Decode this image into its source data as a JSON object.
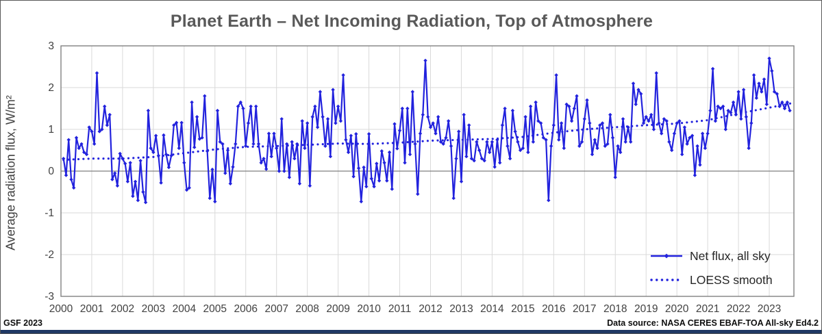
{
  "header": {
    "title": "Planet Earth – Net Incoming Radiation, Top of Atmosphere"
  },
  "footer": {
    "credit": "GSF 2023",
    "data_source": "Data source: NASA CERES EBAF-TOA All-sky Ed4.2"
  },
  "legend": {
    "net_flux_label": "Net flux, all sky",
    "loess_label": "LOESS smooth"
  },
  "colors": {
    "series_blue": "#2222DD",
    "title_gray": "#595959",
    "axis_text": "#404040",
    "gridline": "#D9D9D9",
    "axis_line": "#808080",
    "zero_line": "#7f7f7f",
    "footer_bar_navy": "#1F3864",
    "footer_text": "#0d0d0d"
  },
  "chart_data": {
    "type": "line",
    "title": "Planet Earth – Net Incoming Radiation, Top of Atmosphere",
    "xlabel": "",
    "ylabel": "Average radiation flux, W/m²",
    "ylim": [
      -3,
      3
    ],
    "xlim": [
      2000,
      23.8
    ],
    "y_ticks": [
      3,
      2,
      1,
      0,
      -1,
      -2,
      -3
    ],
    "x_ticks": [
      2000,
      2001,
      2002,
      2003,
      2004,
      2005,
      2006,
      2007,
      2008,
      2009,
      2010,
      2011,
      2012,
      2013,
      2014,
      2015,
      2016,
      2017,
      2018,
      2019,
      2020,
      2021,
      2022,
      2023
    ],
    "grid": true,
    "legend_position": "lower right",
    "series": [
      {
        "name": "Net flux, all sky",
        "style": "solid-line-with-diamond-markers",
        "frequency": "monthly",
        "start": "2000-02",
        "units": "W/m2",
        "values": [
          0.3,
          -0.1,
          0.75,
          -0.2,
          -0.4,
          0.8,
          0.55,
          0.65,
          0.45,
          0.4,
          1.05,
          0.95,
          0.65,
          2.35,
          0.95,
          1.0,
          1.55,
          1.1,
          1.35,
          -0.2,
          -0.05,
          -0.35,
          0.42,
          0.3,
          0.18,
          -0.25,
          0.2,
          -0.6,
          -0.25,
          -0.7,
          0.25,
          -0.5,
          -0.75,
          1.45,
          0.55,
          0.45,
          0.85,
          0.37,
          -0.28,
          0.86,
          0.4,
          0.09,
          0.37,
          1.1,
          1.16,
          0.55,
          1.16,
          0.2,
          -0.45,
          -0.4,
          1.65,
          0.57,
          1.3,
          0.77,
          0.8,
          1.8,
          0.48,
          -0.65,
          0.04,
          -0.73,
          1.45,
          0.7,
          0.65,
          -0.05,
          0.5,
          -0.3,
          0.1,
          0.65,
          1.55,
          1.65,
          1.5,
          0.6,
          1.15,
          1.55,
          0.65,
          1.55,
          0.65,
          0.2,
          0.3,
          0.05,
          0.9,
          0.35,
          0.9,
          0.55,
          0.0,
          1.25,
          0.0,
          0.65,
          -0.15,
          0.7,
          0.3,
          0.65,
          -0.3,
          1.2,
          0.55,
          1.15,
          -0.35,
          1.3,
          1.55,
          1.05,
          1.9,
          1.3,
          0.6,
          1.25,
          0.35,
          1.95,
          1.15,
          1.55,
          1.2,
          2.3,
          0.75,
          0.45,
          0.85,
          -0.13,
          0.89,
          0.07,
          -0.73,
          0.09,
          -0.37,
          0.89,
          -0.18,
          -0.37,
          0.18,
          -0.23,
          0.48,
          0.2,
          -0.23,
          0.45,
          -0.43,
          1.13,
          0.54,
          0.97,
          1.5,
          0.2,
          1.5,
          0.4,
          1.9,
          0.65,
          -0.55,
          0.9,
          1.35,
          2.65,
          1.3,
          1.05,
          1.15,
          0.9,
          1.3,
          0.7,
          0.65,
          0.8,
          1.2,
          0.6,
          -0.65,
          0.3,
          0.95,
          -0.25,
          1.35,
          0.35,
          1.1,
          0.3,
          0.25,
          0.7,
          0.5,
          0.3,
          0.25,
          0.7,
          0.45,
          0.7,
          0.1,
          0.75,
          0.2,
          1.1,
          1.5,
          0.6,
          0.3,
          1.45,
          0.95,
          0.7,
          0.5,
          0.55,
          1.3,
          0.45,
          1.55,
          0.7,
          1.65,
          1.2,
          1.15,
          0.8,
          0.75,
          -0.7,
          0.6,
          1.1,
          2.3,
          0.75,
          1.15,
          0.55,
          1.6,
          1.55,
          1.2,
          1.5,
          1.8,
          0.6,
          0.7,
          1.25,
          1.7,
          1.15,
          0.4,
          0.75,
          0.55,
          1.1,
          1.15,
          0.6,
          0.65,
          1.35,
          0.8,
          -0.15,
          0.6,
          0.45,
          1.25,
          0.7,
          1.05,
          0.7,
          2.1,
          1.6,
          1.95,
          1.85,
          1.15,
          1.3,
          1.2,
          1.35,
          1.0,
          2.35,
          1.15,
          0.9,
          1.25,
          1.2,
          0.7,
          0.5,
          0.9,
          1.15,
          1.2,
          0.4,
          1.05,
          0.65,
          0.8,
          0.85,
          -0.1,
          0.6,
          0.15,
          0.9,
          0.55,
          0.9,
          1.45,
          2.45,
          1.2,
          1.55,
          1.5,
          1.55,
          1.0,
          1.45,
          1.4,
          1.65,
          1.35,
          1.9,
          1.25,
          1.95,
          1.3,
          0.55,
          1.15,
          2.3,
          1.75,
          2.1,
          1.9,
          2.2,
          1.6,
          2.7,
          2.4,
          1.9,
          1.85,
          1.55,
          1.65,
          1.5,
          1.65,
          1.45
        ]
      },
      {
        "name": "LOESS smooth",
        "style": "dotted-line",
        "points": [
          [
            2000.08,
            0.27
          ],
          [
            2001,
            0.3
          ],
          [
            2002,
            0.3
          ],
          [
            2003,
            0.34
          ],
          [
            2004,
            0.43
          ],
          [
            2005,
            0.52
          ],
          [
            2006,
            0.58
          ],
          [
            2007,
            0.6
          ],
          [
            2008,
            0.63
          ],
          [
            2009,
            0.66
          ],
          [
            2010,
            0.65
          ],
          [
            2011,
            0.68
          ],
          [
            2012,
            0.73
          ],
          [
            2013,
            0.75
          ],
          [
            2014,
            0.77
          ],
          [
            2015,
            0.82
          ],
          [
            2016,
            0.92
          ],
          [
            2017,
            1.0
          ],
          [
            2018,
            1.05
          ],
          [
            2019,
            1.1
          ],
          [
            2020,
            1.14
          ],
          [
            2021,
            1.22
          ],
          [
            2022,
            1.38
          ],
          [
            2023,
            1.52
          ],
          [
            2023.75,
            1.63
          ]
        ]
      }
    ]
  }
}
